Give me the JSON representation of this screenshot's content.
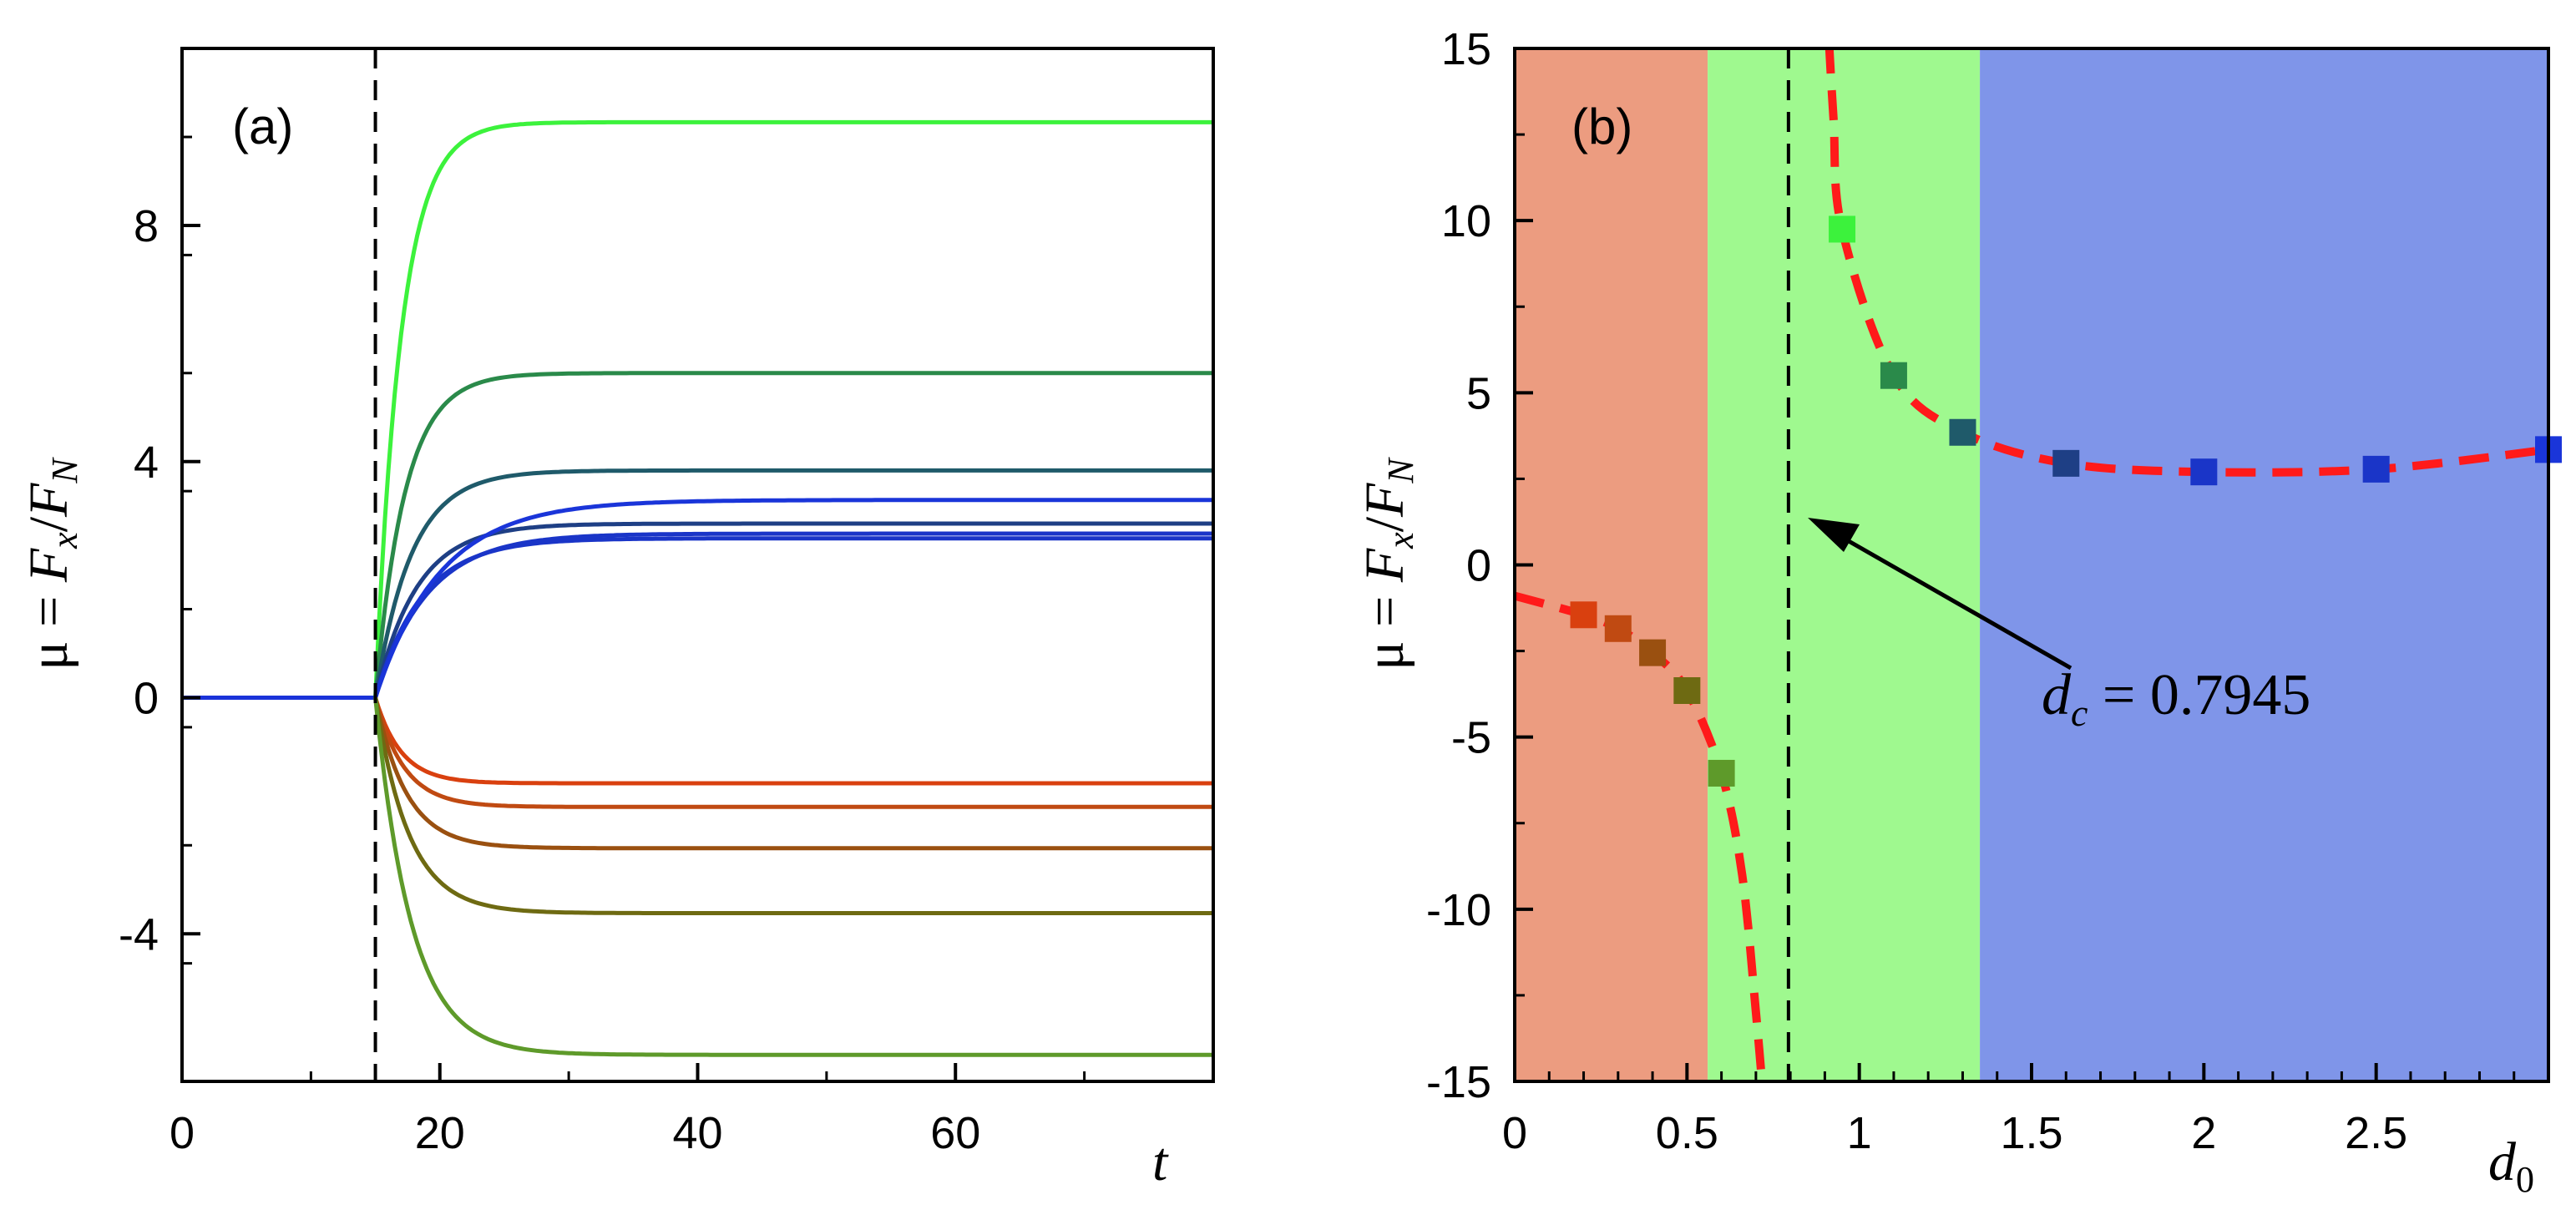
{
  "chart_data": [
    {
      "type": "line",
      "panel_label": "(a)",
      "xlabel": "t",
      "ylabel": {
        "mu": "μ",
        "eq": " = ",
        "F": "F",
        "sub_x": "x",
        "slash": "/",
        "sub_N": "N"
      },
      "xlim": [
        0,
        80
      ],
      "ylim": [
        -6.5,
        11
      ],
      "x_ticks": [
        0,
        20,
        40,
        60
      ],
      "x_tick_labels": [
        "0",
        "20",
        "40",
        "60"
      ],
      "x_minor_step": 10,
      "y_ticks": [
        -4,
        0,
        4,
        8
      ],
      "y_tick_labels": [
        "-4",
        "0",
        "4",
        "8"
      ],
      "y_minor_step": 2,
      "vline_x": 15,
      "t_start": 15,
      "baseline_color": "#1a33d9",
      "series": [
        {
          "final": 9.75,
          "tau": 2.0,
          "color": "#3cf23c"
        },
        {
          "final": 5.5,
          "tau": 2.3,
          "color": "#2a8a4a"
        },
        {
          "final": 3.85,
          "tau": 2.8,
          "color": "#1f5a6a"
        },
        {
          "final": 2.95,
          "tau": 3.2,
          "color": "#1e3f85"
        },
        {
          "final": 2.7,
          "tau": 3.6,
          "color": "#1a35c8"
        },
        {
          "final": 2.78,
          "tau": 4.0,
          "color": "#1a35c8"
        },
        {
          "final": 3.35,
          "tau": 5.0,
          "color": "#1a35d9"
        },
        {
          "final": -1.45,
          "tau": 2.0,
          "color": "#d9400f"
        },
        {
          "final": -1.85,
          "tau": 2.2,
          "color": "#c04a12"
        },
        {
          "final": -2.55,
          "tau": 2.4,
          "color": "#9a5010"
        },
        {
          "final": -3.65,
          "tau": 2.6,
          "color": "#6e6a12"
        },
        {
          "final": -6.05,
          "tau": 2.8,
          "color": "#5e9a2a"
        }
      ]
    },
    {
      "type": "scatter",
      "panel_label": "(b)",
      "xlabel": {
        "d": "d",
        "sub": "0"
      },
      "ylabel": {
        "mu": "μ",
        "eq": " = ",
        "F": "F",
        "sub_x": "x",
        "slash": "/",
        "sub_N": "N"
      },
      "xlim": [
        0,
        3.0
      ],
      "ylim": [
        -15,
        15
      ],
      "x_ticks": [
        0,
        0.5,
        1,
        1.5,
        2,
        2.5
      ],
      "x_tick_labels": [
        "0",
        "0.5",
        "1",
        "1.5",
        "2",
        "2.5"
      ],
      "x_minor_step": 0.1,
      "y_ticks": [
        -15,
        -10,
        -5,
        0,
        5,
        10,
        15
      ],
      "y_tick_labels": [
        "-15",
        "-10",
        "-5",
        "0",
        "5",
        "10",
        "15"
      ],
      "y_minor_step": 2.5,
      "regions": [
        {
          "x0": 0,
          "x1": 0.56,
          "color": "#ec9c80"
        },
        {
          "x0": 0.56,
          "x1": 1.35,
          "color": "#9ff98f"
        },
        {
          "x0": 1.35,
          "x1": 3.0,
          "color": "#7f95e9"
        }
      ],
      "critical_d": 0.7945,
      "annotation": {
        "d": "d",
        "sub": "c",
        "rest": " = 0.7945"
      },
      "fit_color": "#ff1a1a",
      "points": [
        {
          "x": 0.2,
          "y": -1.45,
          "color": "#d9400f"
        },
        {
          "x": 0.3,
          "y": -1.85,
          "color": "#c04a12"
        },
        {
          "x": 0.4,
          "y": -2.55,
          "color": "#9a5010"
        },
        {
          "x": 0.5,
          "y": -3.65,
          "color": "#6e6a12"
        },
        {
          "x": 0.6,
          "y": -6.05,
          "color": "#5e9a2a"
        },
        {
          "x": 0.95,
          "y": 9.75,
          "color": "#3cf23c"
        },
        {
          "x": 1.1,
          "y": 5.5,
          "color": "#2a8a4a"
        },
        {
          "x": 1.3,
          "y": 3.85,
          "color": "#1f5a6a"
        },
        {
          "x": 1.6,
          "y": 2.95,
          "color": "#1e3f85"
        },
        {
          "x": 2.0,
          "y": 2.7,
          "color": "#1a35c8"
        },
        {
          "x": 2.5,
          "y": 2.78,
          "color": "#1a35c8"
        },
        {
          "x": 3.0,
          "y": 3.35,
          "color": "#1a35d9"
        }
      ]
    }
  ]
}
